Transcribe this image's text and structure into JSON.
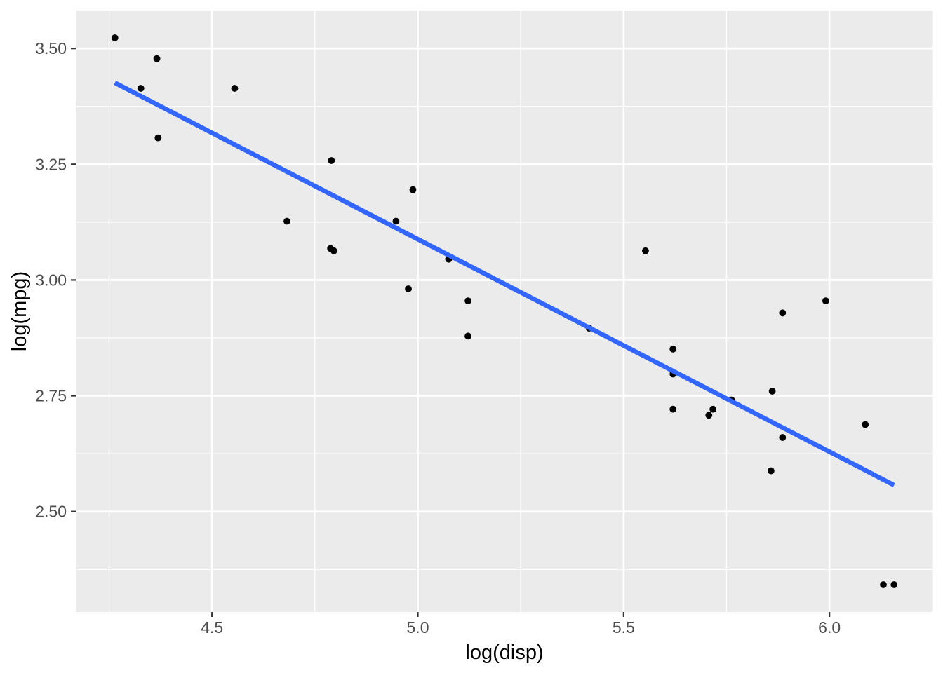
{
  "chart_data": {
    "type": "scatter",
    "title": "",
    "xlabel": "log(disp)",
    "ylabel": "log(mpg)",
    "xlim": [
      4.169,
      6.252
    ],
    "ylim": [
      2.283,
      3.582
    ],
    "grid": true,
    "legend": false,
    "x_ticks": {
      "values": [
        4.5,
        5.0,
        5.5,
        6.0
      ],
      "labels": [
        "4.5",
        "5.0",
        "5.5",
        "6.0"
      ]
    },
    "y_ticks": {
      "values": [
        2.5,
        2.75,
        3.0,
        3.25,
        3.5
      ],
      "labels": [
        "2.50",
        "2.75",
        "3.00",
        "3.25",
        "3.50"
      ]
    },
    "x_minor_gridlines": [
      4.25,
      4.75,
      5.25,
      5.75,
      6.25
    ],
    "y_minor_gridlines": [
      2.375,
      2.625,
      2.875,
      3.125,
      3.375
    ],
    "points": [
      [
        4.264,
        3.523
      ],
      [
        4.327,
        3.414
      ],
      [
        4.366,
        3.478
      ],
      [
        4.369,
        3.307
      ],
      [
        4.555,
        3.414
      ],
      [
        4.682,
        3.127
      ],
      [
        4.788,
        3.068
      ],
      [
        4.79,
        3.258
      ],
      [
        4.796,
        3.063
      ],
      [
        4.947,
        3.127
      ],
      [
        4.977,
        2.981
      ],
      [
        4.988,
        3.195
      ],
      [
        5.075,
        3.045
      ],
      [
        5.075,
        3.045
      ],
      [
        5.122,
        2.955
      ],
      [
        5.122,
        2.879
      ],
      [
        5.416,
        2.896
      ],
      [
        5.553,
        3.063
      ],
      [
        5.62,
        2.797
      ],
      [
        5.62,
        2.851
      ],
      [
        5.62,
        2.721
      ],
      [
        5.707,
        2.708
      ],
      [
        5.717,
        2.721
      ],
      [
        5.762,
        2.741
      ],
      [
        5.858,
        2.588
      ],
      [
        5.861,
        2.76
      ],
      [
        5.886,
        2.929
      ],
      [
        5.886,
        2.66
      ],
      [
        5.991,
        2.955
      ],
      [
        6.087,
        2.688
      ],
      [
        6.131,
        2.342
      ],
      [
        6.157,
        2.342
      ]
    ],
    "trend_line": {
      "x1": 4.264,
      "y1": 3.426,
      "x2": 6.157,
      "y2": 2.557
    },
    "style": {
      "panel_bg": "#EBEBEB",
      "grid_color": "#FFFFFF",
      "point_color": "#000000",
      "trend_line_color": "#3366FF",
      "tick_label_color": "#4D4D4D",
      "tick_mark_color": "#333333",
      "axis_title_color": "#000000",
      "figure_bg": "#FFFFFF"
    }
  }
}
